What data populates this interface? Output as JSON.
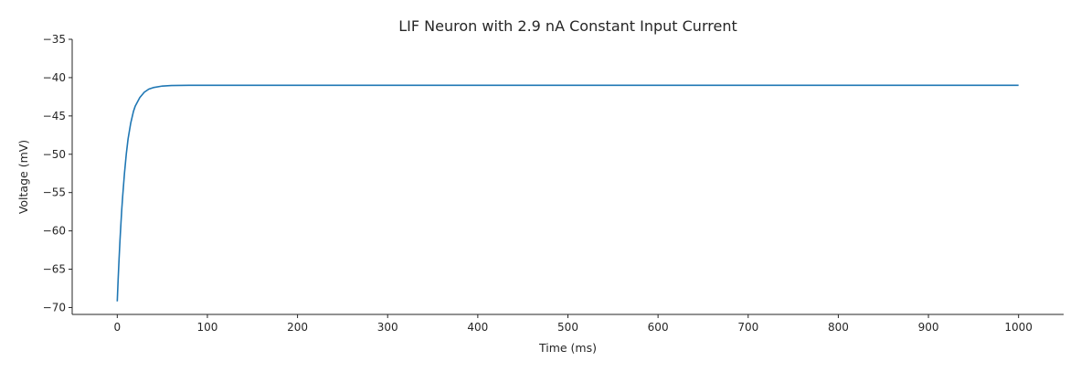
{
  "chart_data": {
    "type": "line",
    "title": "LIF Neuron with 2.9 nA Constant Input Current",
    "xlabel": "Time (ms)",
    "ylabel": "Voltage (mV)",
    "xlim": [
      -50,
      1050
    ],
    "ylim": [
      -70.9,
      -35
    ],
    "xticks": [
      0,
      100,
      200,
      300,
      400,
      500,
      600,
      700,
      800,
      900,
      1000
    ],
    "xtick_labels": [
      "0",
      "100",
      "200",
      "300",
      "400",
      "500",
      "600",
      "700",
      "800",
      "900",
      "1000"
    ],
    "yticks": [
      -70,
      -65,
      -60,
      -55,
      -50,
      -45,
      -40,
      -35
    ],
    "ytick_labels": [
      "−70",
      "−65",
      "−60",
      "−55",
      "−50",
      "−45",
      "−40",
      "−35"
    ],
    "grid": false,
    "legend": "none",
    "series": [
      {
        "color": "#1f77b4",
        "x": [
          0,
          1,
          2,
          3,
          4,
          5,
          6,
          8,
          10,
          12,
          15,
          18,
          20,
          25,
          30,
          35,
          40,
          50,
          60,
          70,
          80,
          100,
          150,
          200,
          300,
          400,
          500,
          600,
          700,
          800,
          900,
          1000
        ],
        "y": [
          -69.2,
          -66.3,
          -63.7,
          -61.3,
          -59.2,
          -57.2,
          -55.5,
          -52.5,
          -50.0,
          -48.0,
          -45.9,
          -44.4,
          -43.7,
          -42.6,
          -41.9,
          -41.5,
          -41.3,
          -41.1,
          -41.03,
          -41.01,
          -41.0,
          -41.0,
          -41.0,
          -41.0,
          -41.0,
          -41.0,
          -41.0,
          -41.0,
          -41.0,
          -41.0,
          -41.0,
          -41.0
        ]
      }
    ]
  }
}
